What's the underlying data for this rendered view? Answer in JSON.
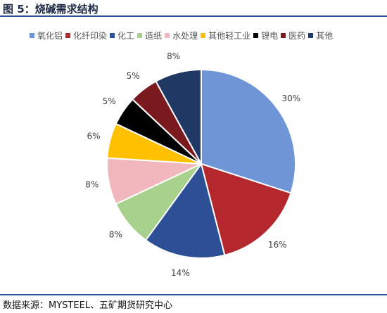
{
  "header": {
    "title": "图 5：烧碱需求结构"
  },
  "footer": {
    "source": "数据来源：MYSTEEL、五矿期货研究中心"
  },
  "chart_data": {
    "type": "pie",
    "legend_position": "top",
    "categories": [
      "氧化铝",
      "化纤印染",
      "化工",
      "造纸",
      "水处理",
      "其他轻工业",
      "锂电",
      "医药",
      "其他"
    ],
    "values": [
      30,
      16,
      14,
      8,
      8,
      6,
      5,
      5,
      8
    ],
    "labels": [
      "30%",
      "16%",
      "14%",
      "8%",
      "8%",
      "6%",
      "5%",
      "5%",
      "8%"
    ],
    "colors": [
      "#6f95d6",
      "#b3272d",
      "#2d4f95",
      "#a9d18e",
      "#f0b8bd",
      "#ffc000",
      "#000000",
      "#7a1a1e",
      "#1f3864"
    ]
  }
}
